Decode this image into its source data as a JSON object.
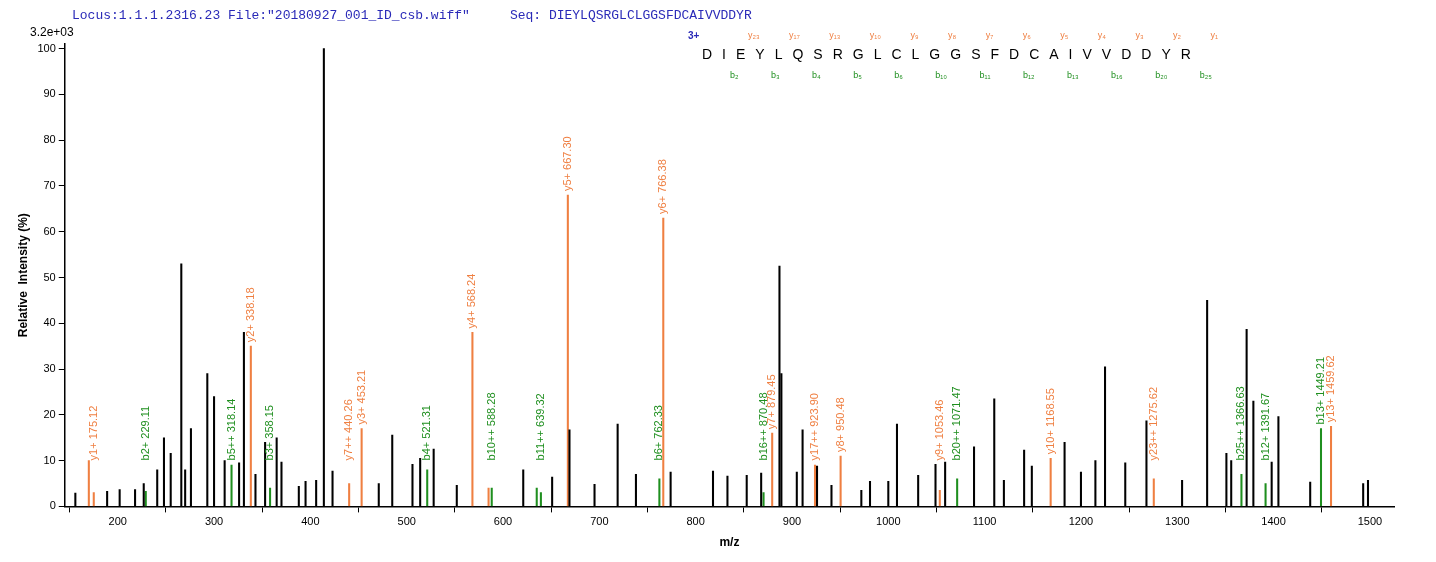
{
  "chart_data": {
    "type": "bar",
    "title": "Locus:1.1.1.2316.23 File:\"20180927_001_ID_csb.wiff\"",
    "subtitle": "Seq: DIEYLQSRGLCLGGSFDCAIVVDDYR",
    "xlabel": "m/z",
    "ylabel": "Relative  Intensity (%)",
    "annotations": [
      "3.2e+03",
      "3+",
      "DIEYLQSRGLCLGGSFDCAIVVDDYR",
      "y₂₃ y₁₇ y₁₃ y₁₀ y₉ y₈ y₇ y₆ y₅ y₄ y₃ y₂ y₁",
      "b₂ b₃ b₄ b₅ b₆ b₁₀ b₁₁ b₁₂ b₁₃ b₁₆ b₂₀ b₂₅"
    ],
    "xlim": [
      145,
      1525
    ],
    "xticks": [
      200,
      300,
      400,
      500,
      600,
      700,
      800,
      900,
      1000,
      1100,
      1200,
      1300,
      1400,
      1500
    ],
    "ylim": [
      0,
      101
    ],
    "yticks": [
      0,
      10,
      20,
      30,
      40,
      50,
      60,
      70,
      80,
      90,
      100
    ],
    "grid": false,
    "series": [
      {
        "color": "#000000",
        "x": [
          156,
          189,
          202,
          218,
          227,
          241,
          248,
          255,
          266,
          270,
          276,
          293,
          300,
          311,
          326,
          331,
          343,
          353,
          365,
          370,
          388,
          395,
          406,
          414,
          423,
          471,
          485,
          506,
          514,
          528,
          552,
          621,
          651,
          669,
          695,
          719,
          738,
          774,
          818,
          833,
          853,
          868,
          887,
          889,
          905,
          911,
          926,
          941,
          972,
          981,
          1000,
          1009,
          1031,
          1049,
          1059,
          1089,
          1110,
          1120,
          1141,
          1149,
          1183,
          1200,
          1215,
          1225,
          1246,
          1268,
          1305,
          1331,
          1351,
          1356,
          1372,
          1379,
          1398,
          1405,
          1438,
          1493,
          1498
        ],
        "values": [
          2.9,
          3.3,
          3.7,
          3.7,
          5,
          8,
          15,
          11.6,
          53,
          8,
          17,
          29,
          24,
          10,
          9.5,
          38,
          7,
          14,
          15,
          9.7,
          4.4,
          5.5,
          5.7,
          100,
          7.7,
          5,
          15.6,
          9.2,
          10.5,
          12.5,
          4.6,
          8,
          6.4,
          16.7,
          4.8,
          18,
          7,
          7.5,
          7.7,
          6.6,
          6.8,
          7.3,
          52.5,
          29,
          7.5,
          16.7,
          8.8,
          4.6,
          3.5,
          5.5,
          5.5,
          18,
          6.8,
          9.2,
          9.7,
          13,
          23.5,
          5.7,
          12.3,
          8.8,
          14,
          7.5,
          10,
          30.5,
          9.5,
          18.7,
          5.7,
          45,
          11.6,
          10,
          38.7,
          23,
          9.7,
          19.6,
          5.3,
          5,
          5.7
        ]
      },
      {
        "color": "#ef7f41",
        "x": [
          170,
          175.12,
          338.18,
          440.26,
          453.21,
          568.24,
          585,
          667.3,
          766.38,
          879.45,
          923.9,
          950.48,
          1053.46,
          1168.55,
          1275.62,
          1459.62
        ],
        "values": [
          10,
          3,
          35,
          5,
          17,
          38,
          4,
          68,
          63,
          16,
          9,
          11,
          3.5,
          10.5,
          6,
          17.5
        ],
        "value_labels": [
          null,
          "y1+ 175.12",
          "y2+ 338.18",
          "y7++ 440.26",
          "y3+ 453.21",
          "y4+ 568.24",
          null,
          "y5+ 667.30",
          "y6+ 766.38",
          "y7+ 879.45",
          "y17++ 923.90",
          "y8+ 950.48",
          "y9+ 1053.46",
          "y10+ 1168.55",
          "y23++ 1275.62",
          "y13+ 1459.62"
        ]
      },
      {
        "color": "#1f8f1f",
        "x": [
          229.11,
          318.14,
          358.15,
          521.31,
          588.28,
          635,
          639.32,
          762.33,
          870.48,
          1071.47,
          1366.63,
          1391.67,
          1449.21
        ],
        "values": [
          3.3,
          9,
          4,
          8,
          4,
          4,
          3,
          6,
          3,
          6,
          7,
          5,
          17
        ],
        "value_labels": [
          "b2+ 229.11",
          "b5++ 318.14",
          "b3+ 358.15",
          "b4+ 521.31",
          "b10++ 588.28",
          null,
          "b11++ 639.32",
          "b6+ 762.33",
          "b16++ 870.48",
          "b20++ 1071.47",
          "b25++ 1366.63",
          "b12+ 1391.67",
          "b13+ 1449.21"
        ]
      }
    ]
  }
}
